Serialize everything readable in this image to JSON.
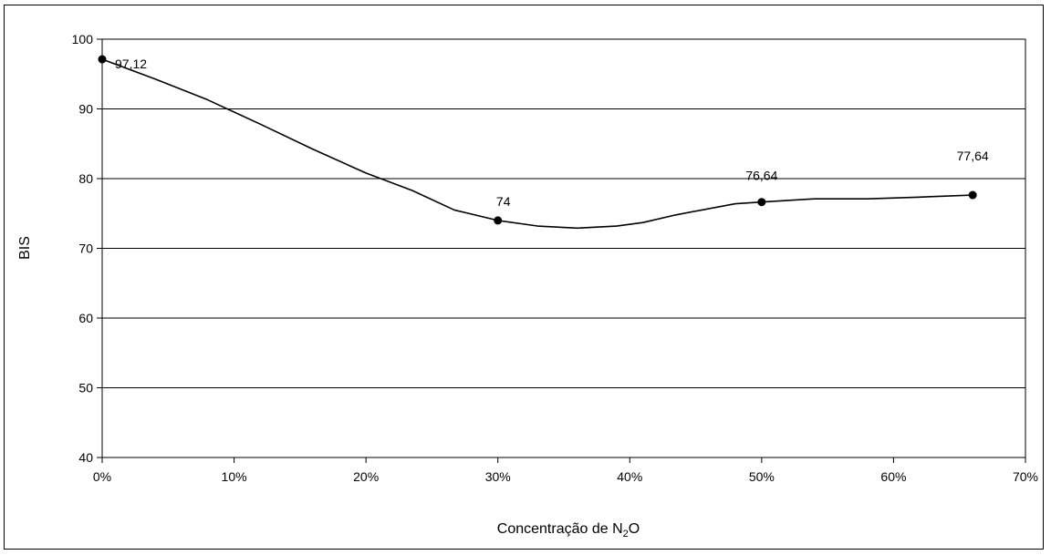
{
  "chart_data": {
    "type": "line",
    "title": "",
    "xlabel": "Concentração de N",
    "xlabel_sub": "2",
    "xlabel_suffix": "O",
    "ylabel": "BIS",
    "xlim": [
      0,
      70
    ],
    "ylim": [
      40,
      100
    ],
    "x_ticks": [
      0,
      10,
      20,
      30,
      40,
      50,
      60,
      70
    ],
    "x_tick_labels": [
      "0%",
      "10%",
      "20%",
      "30%",
      "40%",
      "50%",
      "60%",
      "70%"
    ],
    "y_ticks": [
      40,
      50,
      60,
      70,
      80,
      90,
      100
    ],
    "y_tick_labels": [
      "40",
      "50",
      "60",
      "70",
      "80",
      "90",
      "100"
    ],
    "grid": "horizontal",
    "series": [
      {
        "color": "#000000",
        "curve_x": [
          0,
          4,
          8,
          12,
          16,
          20,
          23.5,
          26.7,
          30,
          33,
          36,
          39,
          41,
          43.5,
          48,
          50,
          54,
          58,
          62,
          66
        ],
        "curve_y": [
          97.12,
          94.3,
          91.3,
          87.8,
          84.2,
          80.8,
          78.3,
          75.5,
          74.0,
          73.2,
          72.9,
          73.2,
          73.7,
          74.8,
          76.4,
          76.64,
          77.1,
          77.1,
          77.35,
          77.64
        ],
        "points": [
          {
            "x": 0,
            "y": 97.12,
            "label": "97,12"
          },
          {
            "x": 30,
            "y": 74,
            "label": "74"
          },
          {
            "x": 50,
            "y": 76.64,
            "label": "76,64"
          },
          {
            "x": 66,
            "y": 77.64,
            "label": "77,64"
          }
        ]
      }
    ]
  }
}
